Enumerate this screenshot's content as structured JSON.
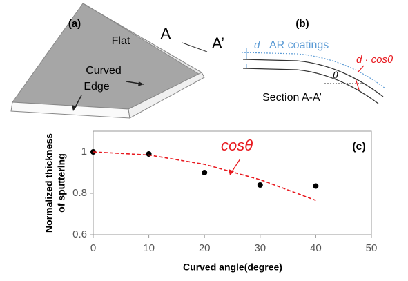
{
  "diagram": {
    "a": {
      "tag": "(a)",
      "flat": "Flat",
      "a_label": "A",
      "a_prime": "A’",
      "curved": "Curved",
      "edge": "Edge"
    },
    "b": {
      "tag": "(b)",
      "d": "d",
      "coating": "AR coatings",
      "d_cos": "d · cosθ",
      "theta": "θ",
      "section": "Section A-A’"
    }
  },
  "chart_data": {
    "type": "scatter",
    "tag": "(c)",
    "x_label": "Curved angle(degree)",
    "y_label": [
      "Normalized thickness",
      "of sputtering"
    ],
    "xlim": [
      0,
      50
    ],
    "xticks": [
      0,
      10,
      20,
      30,
      40,
      50
    ],
    "ylim": [
      0.6,
      1.1
    ],
    "yticks": [
      0.6,
      0.8,
      1
    ],
    "series": [
      {
        "color": "#000000",
        "style": "markers",
        "x": [
          0,
          10,
          20,
          30,
          40
        ],
        "values": [
          1,
          0.99,
          0.9,
          0.84,
          0.835
        ]
      },
      {
        "name": "cosθ",
        "color": "#e8191f",
        "style": "dashed",
        "x": [
          0,
          10,
          20,
          30,
          40
        ],
        "values": [
          1,
          0.985,
          0.94,
          0.866,
          0.766
        ]
      }
    ]
  }
}
